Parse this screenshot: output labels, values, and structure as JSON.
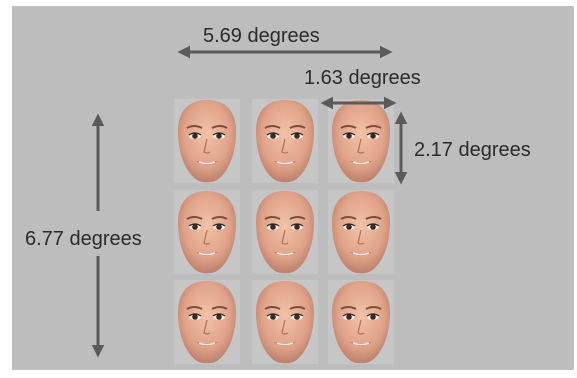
{
  "labels": {
    "overall_width": "5.69 degrees",
    "face_width": "1.63 degrees",
    "face_height": "2.17 degrees",
    "overall_height": "6.77 degrees"
  },
  "grid": {
    "rows": 3,
    "columns": 3
  },
  "colors": {
    "background": "#bdbdbd",
    "arrow": "#5a5a5a",
    "text": "#2b2b2b"
  }
}
